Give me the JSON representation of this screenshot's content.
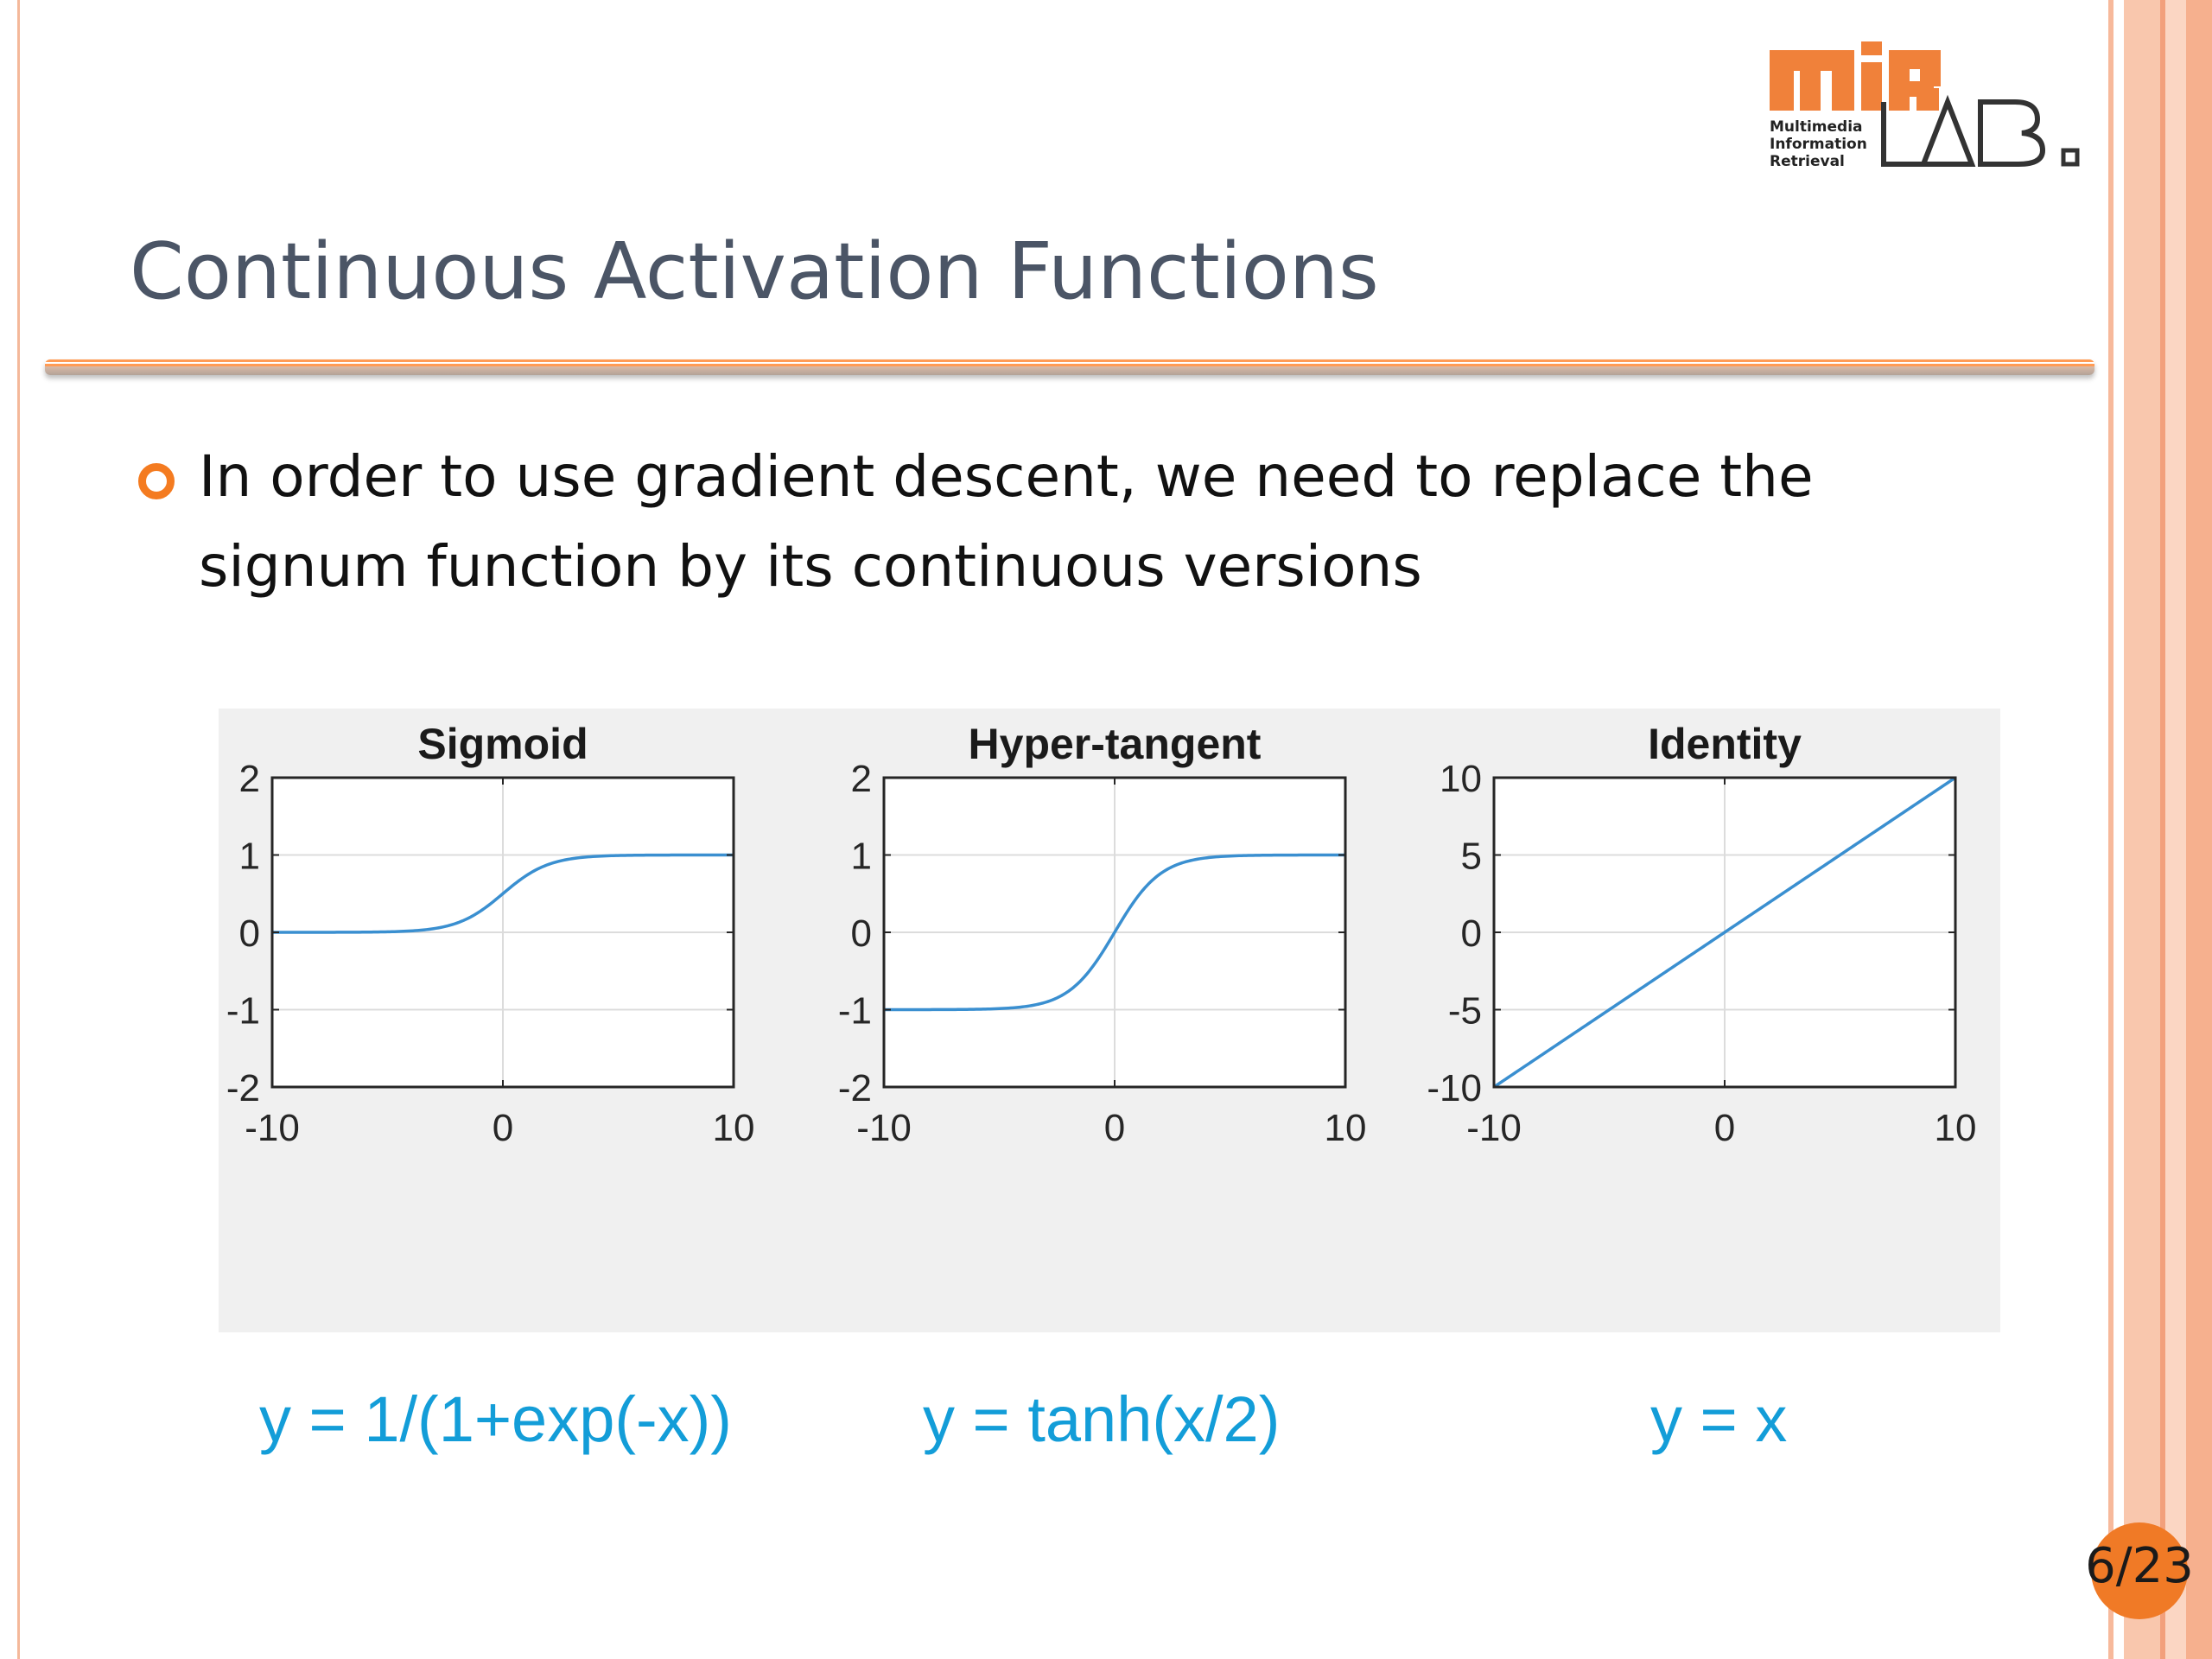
{
  "slide": {
    "title": "Continuous Activation Functions",
    "bullet": "In order to use gradient descent, we need to replace the signum function by its continuous versions",
    "page": "6/23"
  },
  "logo": {
    "mark": "miR LAB.",
    "subtitle_lines": [
      "Multimedia",
      "Information",
      "Retrieval"
    ]
  },
  "colors": {
    "accent_orange": "#f47b20",
    "curve_blue": "#3a8fd0",
    "formula_blue": "#139dd8",
    "title_gray": "#4b5566"
  },
  "formulas": [
    "y = 1/(1+exp(-x))",
    "y = tanh(x/2)",
    "y = x"
  ],
  "chart_data": [
    {
      "type": "line",
      "title": "Sigmoid",
      "function": "1/(1+exp(-x))",
      "x": [
        -10,
        -8,
        -6,
        -4,
        -3,
        -2,
        -1,
        0,
        1,
        2,
        3,
        4,
        6,
        8,
        10
      ],
      "y": [
        4.54e-05,
        0.000335,
        0.00247,
        0.018,
        0.047,
        0.119,
        0.269,
        0.5,
        0.731,
        0.881,
        0.953,
        0.982,
        0.998,
        0.9997,
        0.99995
      ],
      "xlim": [
        -10,
        10
      ],
      "ylim": [
        -2,
        2
      ],
      "xticks": [
        -10,
        0,
        10
      ],
      "yticks": [
        -2,
        -1,
        0,
        1,
        2
      ],
      "grid": true
    },
    {
      "type": "line",
      "title": "Hyper-tangent",
      "function": "tanh(x/2)",
      "x": [
        -10,
        -8,
        -6,
        -4,
        -3,
        -2,
        -1,
        0,
        1,
        2,
        3,
        4,
        6,
        8,
        10
      ],
      "y": [
        -0.9999,
        -0.9993,
        -0.995,
        -0.964,
        -0.905,
        -0.762,
        -0.462,
        0,
        0.462,
        0.762,
        0.905,
        0.964,
        0.995,
        0.9993,
        0.9999
      ],
      "xlim": [
        -10,
        10
      ],
      "ylim": [
        -2,
        2
      ],
      "xticks": [
        -10,
        0,
        10
      ],
      "yticks": [
        -2,
        -1,
        0,
        1,
        2
      ],
      "grid": true
    },
    {
      "type": "line",
      "title": "Identity",
      "function": "x",
      "x": [
        -10,
        10
      ],
      "y": [
        -10,
        10
      ],
      "xlim": [
        -10,
        10
      ],
      "ylim": [
        -10,
        10
      ],
      "xticks": [
        -10,
        0,
        10
      ],
      "yticks": [
        -10,
        -5,
        0,
        5,
        10
      ],
      "grid": true
    }
  ]
}
